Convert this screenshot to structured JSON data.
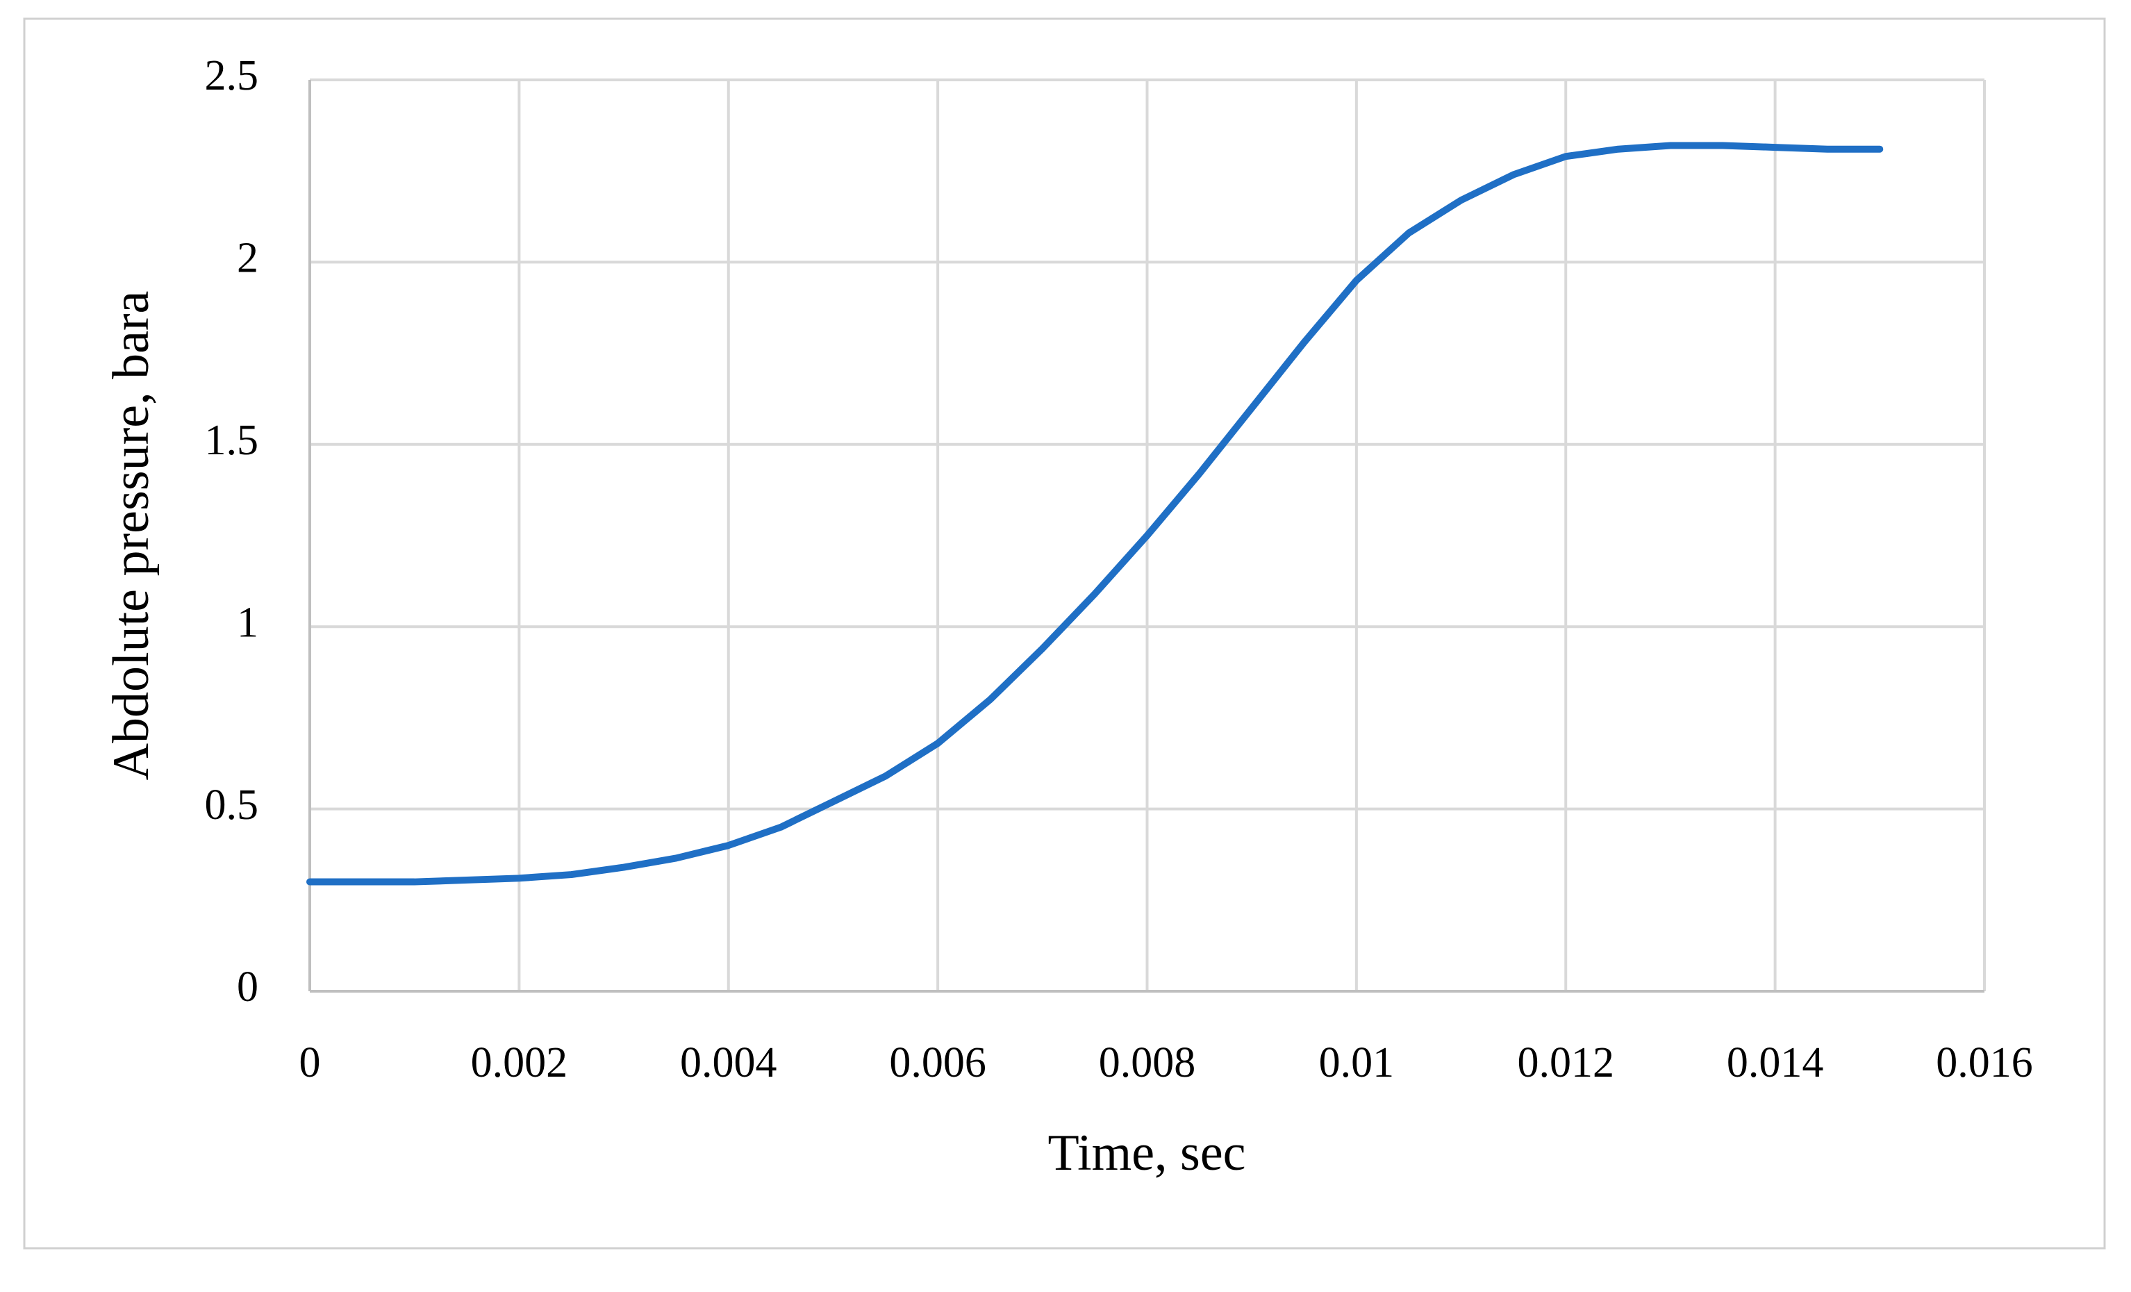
{
  "chart_data": {
    "type": "line",
    "x_label": "Time, sec",
    "y_label": "Abdolute pressure, bara",
    "x": [
      0,
      0.0005,
      0.001,
      0.0015,
      0.002,
      0.0025,
      0.003,
      0.0035,
      0.004,
      0.0045,
      0.005,
      0.0055,
      0.006,
      0.0065,
      0.007,
      0.0075,
      0.008,
      0.0085,
      0.009,
      0.0095,
      0.01,
      0.0105,
      0.011,
      0.0115,
      0.012,
      0.0125,
      0.013,
      0.0135,
      0.014,
      0.0145,
      0.015
    ],
    "series": [
      {
        "color": "#1f6fc5",
        "values": [
          0.3,
          0.3,
          0.3,
          0.305,
          0.31,
          0.32,
          0.34,
          0.365,
          0.4,
          0.45,
          0.52,
          0.59,
          0.68,
          0.8,
          0.94,
          1.09,
          1.25,
          1.42,
          1.6,
          1.78,
          1.95,
          2.08,
          2.17,
          2.24,
          2.29,
          2.31,
          2.32,
          2.32,
          2.315,
          2.31,
          2.31
        ]
      }
    ],
    "xlim": [
      0,
      0.016
    ],
    "xticks": [
      0,
      0.002,
      0.004,
      0.006,
      0.008,
      0.01,
      0.012,
      0.014,
      0.016
    ],
    "ylim": [
      0,
      2.5
    ],
    "yticks": [
      0,
      0.5,
      1,
      1.5,
      2,
      2.5
    ],
    "grid": true
  }
}
